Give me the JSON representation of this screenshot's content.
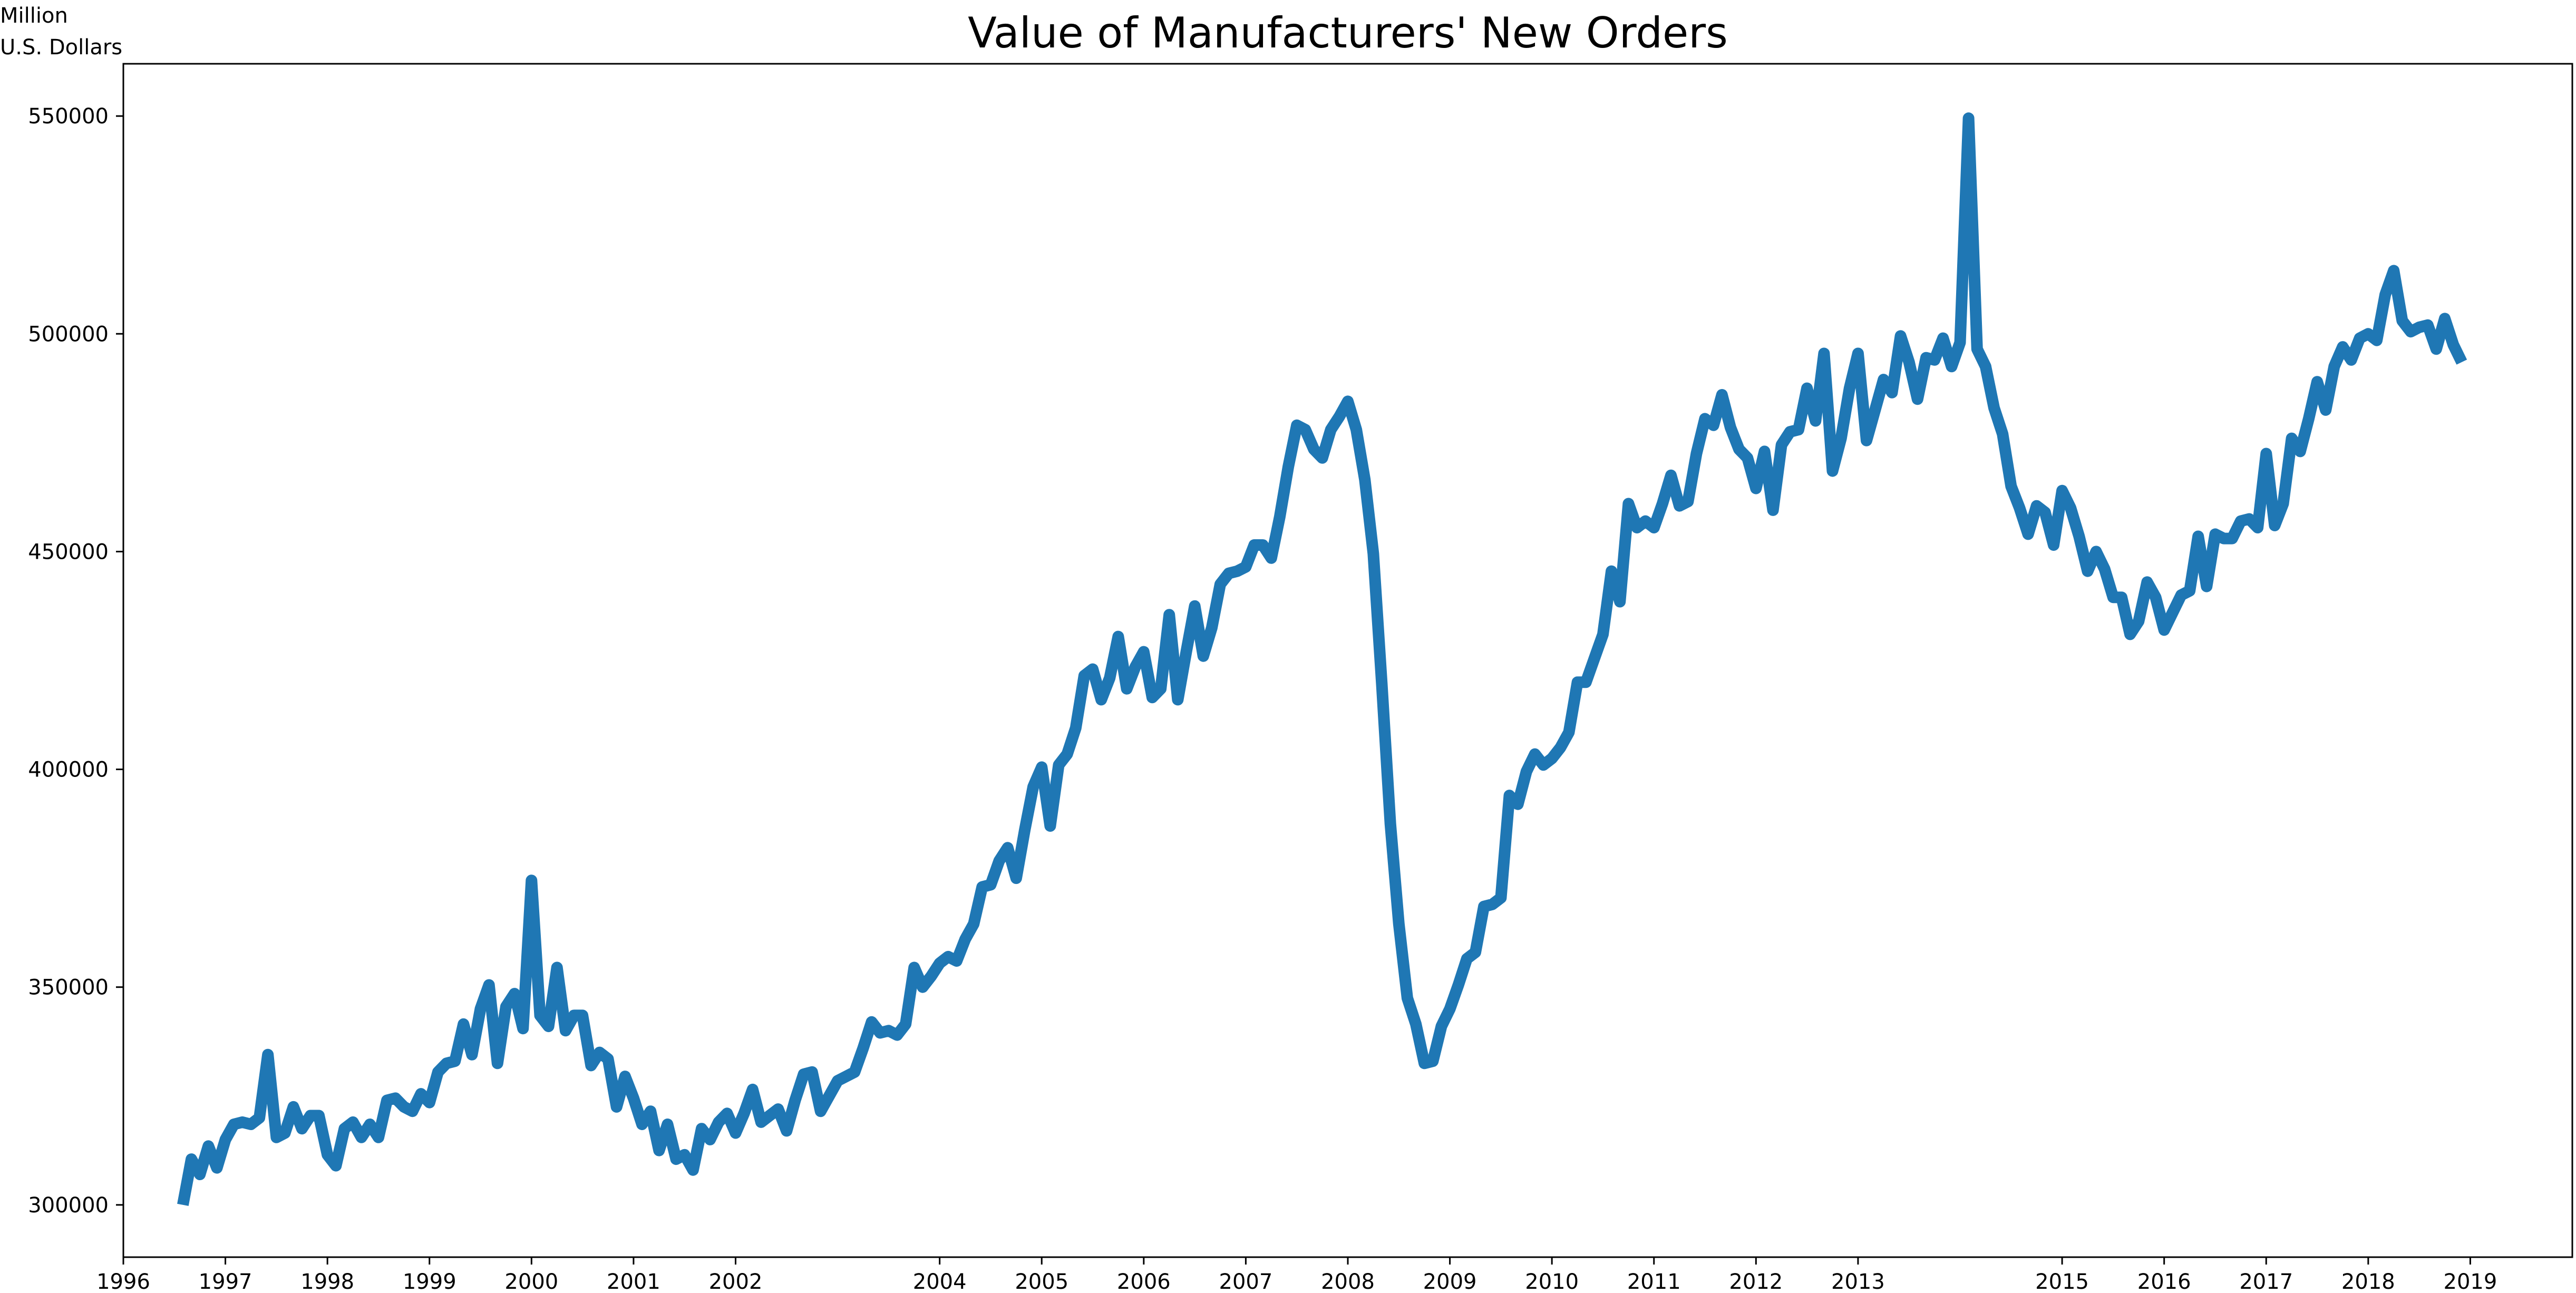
{
  "chart_data": {
    "type": "line",
    "title": "Value of Manufacturers' New Orders",
    "ylabel_lines": [
      "Million",
      "U.S. Dollars"
    ],
    "xlabel": "",
    "x_start": {
      "year": 1996,
      "month": 8
    },
    "xlim": [
      1996,
      2020
    ],
    "ylim": [
      288000,
      562000
    ],
    "xticks": [
      1996,
      1997,
      1998,
      1999,
      2000,
      2001,
      2002,
      2004,
      2005,
      2006,
      2007,
      2008,
      2009,
      2010,
      2011,
      2012,
      2013,
      2015,
      2016,
      2017,
      2018,
      2019
    ],
    "xtick_labels": [
      "1996",
      "1997",
      "1998",
      "1999",
      "2000",
      "2001",
      "2002",
      "2004",
      "2005",
      "2006",
      "2007",
      "2008",
      "2009",
      "2010",
      "2011",
      "2012",
      "2013",
      "2015",
      "2016",
      "2017",
      "2018",
      "2019"
    ],
    "yticks": [
      300000,
      350000,
      400000,
      450000,
      500000,
      550000
    ],
    "ytick_labels": [
      "300000",
      "350000",
      "400000",
      "450000",
      "500000",
      "550000"
    ],
    "grid": false,
    "legend": "none",
    "line_color": "#1f77b4",
    "series": [
      {
        "values": [
          300000,
          310500,
          307000,
          313500,
          308500,
          315000,
          318500,
          319000,
          318500,
          320000,
          334500,
          315500,
          316500,
          322500,
          317500,
          320500,
          320500,
          311500,
          309000,
          317500,
          319000,
          315500,
          318500,
          315500,
          324000,
          324500,
          322500,
          321500,
          325500,
          323500,
          330500,
          332500,
          333000,
          341500,
          334500,
          345000,
          350500,
          332500,
          345500,
          348500,
          340500,
          374500,
          343500,
          341000,
          354500,
          340000,
          343500,
          343500,
          332000,
          335000,
          333500,
          322500,
          329500,
          324500,
          318500,
          321500,
          312500,
          318500,
          310500,
          311500,
          308000,
          317500,
          315000,
          319000,
          321000,
          316500,
          321000,
          326500,
          319000,
          320500,
          322000,
          317000,
          324000,
          330000,
          330500,
          321500,
          325000,
          328500,
          329500,
          330500,
          336000,
          342000,
          339500,
          340000,
          339000,
          341500,
          354500,
          350000,
          352500,
          355500,
          357000,
          356000,
          361000,
          364500,
          373000,
          373500,
          379000,
          382000,
          375000,
          386000,
          396000,
          400500,
          387000,
          401000,
          403500,
          409500,
          421500,
          423000,
          416000,
          421000,
          430500,
          418500,
          423500,
          427000,
          416500,
          418500,
          435500,
          416000,
          427000,
          437500,
          426000,
          432500,
          442500,
          445000,
          445500,
          446500,
          451500,
          451500,
          448500,
          458000,
          469500,
          479000,
          478000,
          473500,
          471500,
          478000,
          481000,
          484500,
          478000,
          466500,
          449500,
          419500,
          387500,
          364500,
          347500,
          341500,
          332500,
          333000,
          341000,
          345000,
          350500,
          356500,
          358000,
          368500,
          369000,
          370500,
          394000,
          392000,
          399500,
          403500,
          401000,
          402500,
          405000,
          408500,
          420000,
          420000,
          425500,
          431000,
          445500,
          438500,
          461000,
          455500,
          457000,
          455500,
          461000,
          467500,
          460500,
          461500,
          472500,
          480500,
          479000,
          486000,
          478500,
          473500,
          471500,
          464500,
          473000,
          459500,
          474500,
          477500,
          478000,
          487500,
          480000,
          495500,
          468500,
          476000,
          487500,
          495500,
          475500,
          482500,
          489500,
          486500,
          499500,
          493500,
          485000,
          494500,
          494000,
          499000,
          492500,
          498000,
          549500,
          496500,
          492500,
          483000,
          477000,
          465000,
          460000,
          454000,
          460500,
          459000,
          451500,
          464000,
          460000,
          453500,
          445500,
          450000,
          446000,
          439500,
          439500,
          431000,
          434000,
          443000,
          439500,
          432000,
          436000,
          440000,
          441000,
          453500,
          442000,
          454000,
          453000,
          453000,
          457000,
          457500,
          455500,
          472500,
          456000,
          461000,
          476000,
          473000,
          480500,
          489000,
          482500,
          492500,
          497000,
          494000,
          499000,
          500000,
          498500,
          509000,
          514500,
          503000,
          500500,
          501500,
          502000,
          496500,
          503500,
          497500,
          493500
        ]
      }
    ]
  }
}
